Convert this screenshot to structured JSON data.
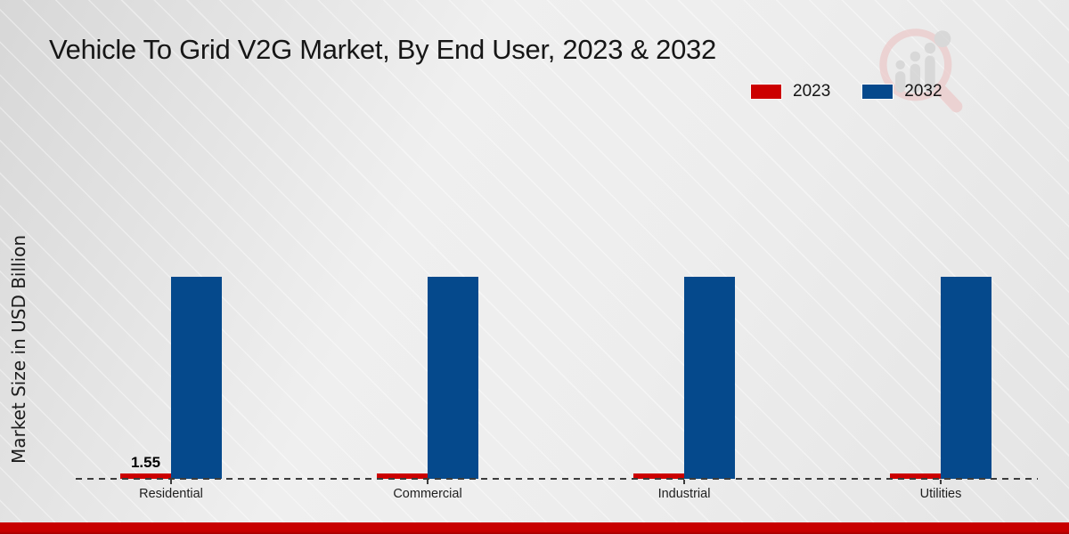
{
  "chart_data": {
    "type": "bar",
    "title": "Vehicle To Grid V2G Market, By End User, 2023 & 2032",
    "ylabel": "Market Size in USD Billion",
    "xlabel": "",
    "categories": [
      "Residential",
      "Commercial",
      "Industrial",
      "Utilities"
    ],
    "series": [
      {
        "name": "2023",
        "color": "#cc0000",
        "values": [
          1.55,
          1.55,
          1.55,
          1.55
        ]
      },
      {
        "name": "2032",
        "color": "#05498c",
        "values": [
          59,
          59,
          59,
          59
        ]
      }
    ],
    "value_labels": [
      {
        "series_index": 0,
        "category_index": 0,
        "text": "1.55"
      }
    ],
    "ylim": [
      0,
      62
    ],
    "grid": false,
    "y_ticks_visible": false,
    "baseline_style": "dashed",
    "legend_position": "top-right"
  },
  "colors": {
    "accent_bottom_bar": "#c80000",
    "bar_red_2023": "#cc0000",
    "bar_blue_2032": "#05498c",
    "baseline": "#3c3c3c",
    "background": "#ebebeb"
  },
  "watermark": {
    "icon": "magnifier-bar-chart-logo"
  }
}
